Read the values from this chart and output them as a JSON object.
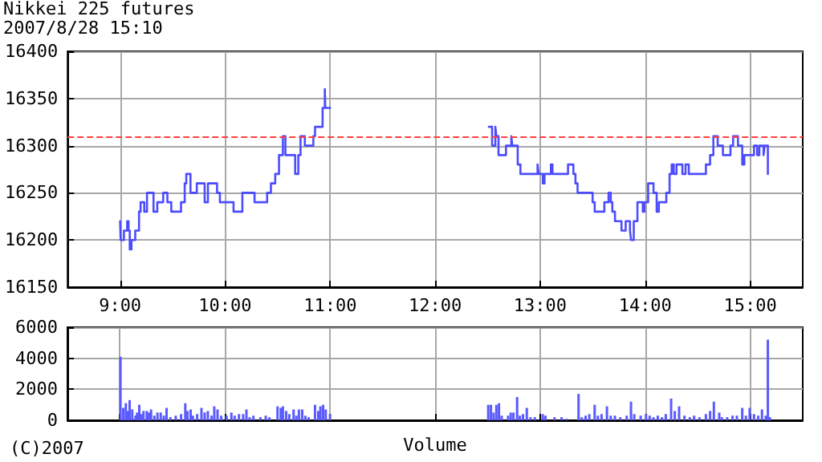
{
  "chart_data": [
    {
      "type": "step",
      "title": "Nikkei 225 futures",
      "subtitle": "2007/8/28 15:10",
      "marker": "none",
      "line_style": "solid",
      "grid": true,
      "xlim": [
        8.5,
        15.5
      ],
      "xticks": [
        {
          "value": 9,
          "label": "9:00"
        },
        {
          "value": 10,
          "label": "10:00"
        },
        {
          "value": 11,
          "label": "11:00"
        },
        {
          "value": 12,
          "label": "12:00"
        },
        {
          "value": 13,
          "label": "13:00"
        },
        {
          "value": 14,
          "label": "14:00"
        },
        {
          "value": 15,
          "label": "15:00"
        }
      ],
      "ylim": [
        16150,
        16400
      ],
      "yticks": [
        16150,
        16200,
        16250,
        16300,
        16350,
        16400
      ],
      "ref_lines": [
        {
          "axis": "y",
          "value": 16310,
          "color": "#ff4040",
          "line_style": "dashed"
        }
      ],
      "series": [
        {
          "color": "#4c4cff",
          "x": [
            9.0,
            9.005,
            9.036,
            9.067,
            9.08,
            9.092,
            9.108,
            9.144,
            9.18,
            9.195,
            9.23,
            9.256,
            9.318,
            9.354,
            9.41,
            9.45,
            9.487,
            9.58,
            9.615,
            9.63,
            9.67,
            9.73,
            9.805,
            9.836,
            9.923,
            9.95,
            10.08,
            10.164,
            10.28,
            10.4,
            10.436,
            10.477,
            10.513,
            10.55,
            10.574,
            10.667,
            10.697,
            10.718,
            10.759,
            10.84,
            10.856,
            10.928,
            10.949,
            10.954,
            11.0
          ],
          "values": [
            16220,
            16200,
            16210,
            16220,
            16210,
            16190,
            16200,
            16210,
            16230,
            16240,
            16230,
            16250,
            16230,
            16240,
            16250,
            16240,
            16230,
            16240,
            16260,
            16270,
            16250,
            16260,
            16240,
            16260,
            16250,
            16240,
            16230,
            16250,
            16240,
            16250,
            16260,
            16270,
            16290,
            16310,
            16290,
            16270,
            16290,
            16310,
            16300,
            16310,
            16320,
            16340,
            16360,
            16340,
            16340
          ]
        },
        {
          "color": "#4c4cff",
          "x": [
            12.511,
            12.542,
            12.573,
            12.583,
            12.603,
            12.674,
            12.725,
            12.735,
            12.786,
            12.812,
            12.975,
            12.985,
            13.025,
            13.041,
            13.102,
            13.117,
            13.265,
            13.316,
            13.336,
            13.356,
            13.499,
            13.519,
            13.611,
            13.651,
            13.672,
            13.687,
            13.712,
            13.774,
            13.814,
            13.855,
            13.865,
            13.891,
            13.926,
            13.977,
            13.992,
            14.028,
            14.079,
            14.109,
            14.13,
            14.201,
            14.232,
            14.252,
            14.272,
            14.298,
            14.354,
            14.384,
            14.415,
            14.578,
            14.618,
            14.649,
            14.69,
            14.74,
            14.812,
            14.837,
            14.883,
            14.924,
            14.944,
            15.036,
            15.066,
            15.087,
            15.127,
            15.137,
            15.168
          ],
          "values": [
            16320,
            16300,
            16320,
            16310,
            16290,
            16300,
            16310,
            16300,
            16280,
            16270,
            16280,
            16270,
            16260,
            16270,
            16280,
            16270,
            16280,
            16270,
            16260,
            16250,
            16240,
            16230,
            16240,
            16250,
            16240,
            16230,
            16220,
            16210,
            16220,
            16210,
            16200,
            16220,
            16240,
            16230,
            16240,
            16260,
            16250,
            16230,
            16240,
            16250,
            16270,
            16280,
            16270,
            16280,
            16270,
            16280,
            16270,
            16280,
            16290,
            16310,
            16300,
            16290,
            16300,
            16310,
            16300,
            16280,
            16290,
            16300,
            16290,
            16300,
            16290,
            16300,
            16270
          ]
        }
      ]
    },
    {
      "type": "bar",
      "xlabel": "Volume",
      "color": "#5a5aff",
      "grid": true,
      "tick_labels": "y",
      "annotations": [
        "(C)2007"
      ],
      "xlim": [
        8.5,
        15.5
      ],
      "xticks": [
        {
          "value": 9,
          "label": null
        },
        {
          "value": 10,
          "label": null
        },
        {
          "value": 11,
          "label": null
        },
        {
          "value": 12,
          "label": null
        },
        {
          "value": 13,
          "label": null
        },
        {
          "value": 14,
          "label": null
        },
        {
          "value": 15,
          "label": null
        }
      ],
      "ylim": [
        0,
        6000
      ],
      "yticks": [
        0,
        2000,
        4000,
        6000
      ],
      "x": [
        9.005,
        9.031,
        9.056,
        9.071,
        9.092,
        9.117,
        9.148,
        9.163,
        9.184,
        9.204,
        9.224,
        9.255,
        9.276,
        9.296,
        9.327,
        9.357,
        9.388,
        9.418,
        9.444,
        9.48,
        9.531,
        9.582,
        9.622,
        9.643,
        9.673,
        9.694,
        9.735,
        9.776,
        9.806,
        9.837,
        9.872,
        9.898,
        9.929,
        9.964,
        10.015,
        10.061,
        10.092,
        10.133,
        10.173,
        10.204,
        10.235,
        10.27,
        10.337,
        10.388,
        10.423,
        10.5,
        10.531,
        10.551,
        10.582,
        10.612,
        10.653,
        10.679,
        10.704,
        10.735,
        10.765,
        10.796,
        10.857,
        10.888,
        10.908,
        10.934,
        10.959,
        11.0,
        12.506,
        12.532,
        12.557,
        12.583,
        12.608,
        12.634,
        12.695,
        12.72,
        12.746,
        12.781,
        12.807,
        12.837,
        12.873,
        12.908,
        12.949,
        13.025,
        13.051,
        13.137,
        13.204,
        13.254,
        13.366,
        13.397,
        13.433,
        13.468,
        13.519,
        13.55,
        13.585,
        13.636,
        13.672,
        13.712,
        13.763,
        13.824,
        13.865,
        13.896,
        13.957,
        14.008,
        14.043,
        14.079,
        14.12,
        14.16,
        14.196,
        14.247,
        14.282,
        14.323,
        14.374,
        14.425,
        14.466,
        14.517,
        14.578,
        14.618,
        14.654,
        14.705,
        14.73,
        14.781,
        14.832,
        14.873,
        14.924,
        14.959,
        14.995,
        15.036,
        15.076,
        15.112,
        15.148,
        15.168,
        15.188
      ],
      "values": [
        4100,
        800,
        1100,
        600,
        1300,
        700,
        300,
        500,
        1000,
        400,
        600,
        600,
        500,
        700,
        300,
        500,
        500,
        300,
        800,
        200,
        300,
        400,
        1100,
        600,
        700,
        300,
        400,
        800,
        500,
        600,
        300,
        900,
        700,
        300,
        300,
        500,
        300,
        400,
        400,
        700,
        200,
        300,
        200,
        300,
        200,
        900,
        800,
        900,
        600,
        400,
        700,
        300,
        700,
        700,
        300,
        200,
        1000,
        600,
        900,
        1000,
        700,
        400,
        1000,
        1000,
        500,
        1000,
        1100,
        300,
        300,
        500,
        500,
        1500,
        300,
        400,
        800,
        200,
        200,
        400,
        300,
        200,
        200,
        100,
        1700,
        200,
        300,
        400,
        1000,
        300,
        400,
        900,
        300,
        300,
        200,
        300,
        1200,
        400,
        300,
        400,
        300,
        200,
        300,
        200,
        400,
        1400,
        600,
        900,
        300,
        200,
        300,
        200,
        400,
        600,
        1200,
        500,
        200,
        200,
        300,
        300,
        800,
        300,
        800,
        400,
        300,
        700,
        300,
        5200,
        200
      ]
    }
  ]
}
